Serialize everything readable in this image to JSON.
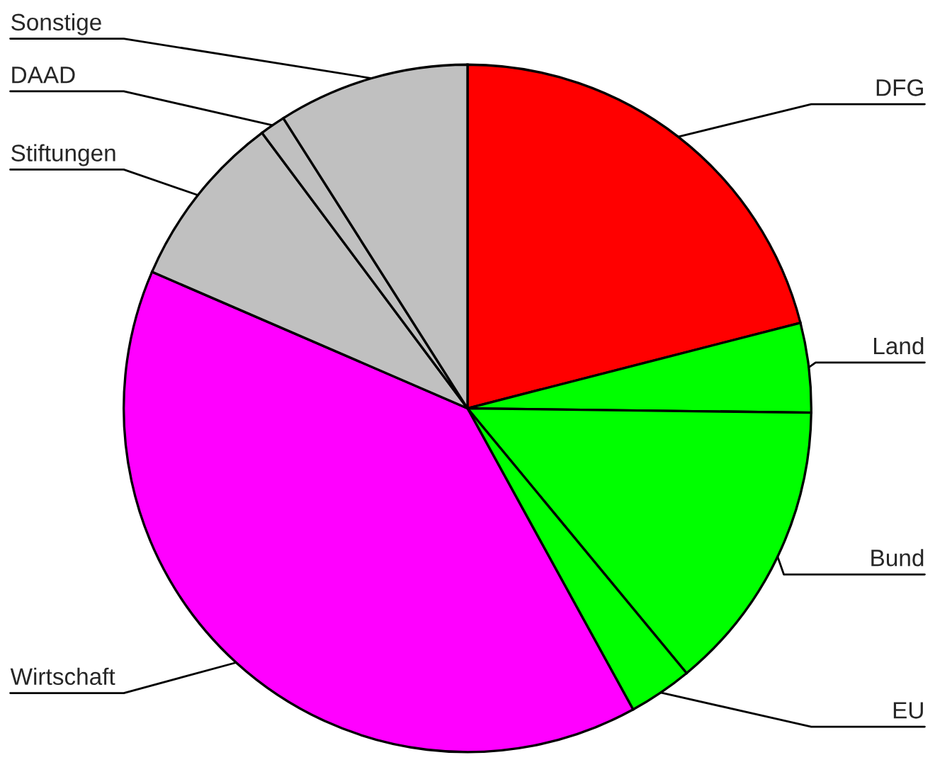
{
  "chart_data": {
    "type": "pie",
    "categories": [
      "DFG",
      "Land",
      "Bund",
      "EU",
      "Wirtschaft",
      "Stiftungen",
      "DAAD",
      "Sonstige"
    ],
    "values": [
      21,
      4.2,
      13.8,
      3,
      39.5,
      8.3,
      1.2,
      9
    ],
    "colors": [
      "#ff0000",
      "#00ff00",
      "#00ff00",
      "#00ff00",
      "#ff00ff",
      "#c0c0c0",
      "#c0c0c0",
      "#c0c0c0"
    ]
  }
}
